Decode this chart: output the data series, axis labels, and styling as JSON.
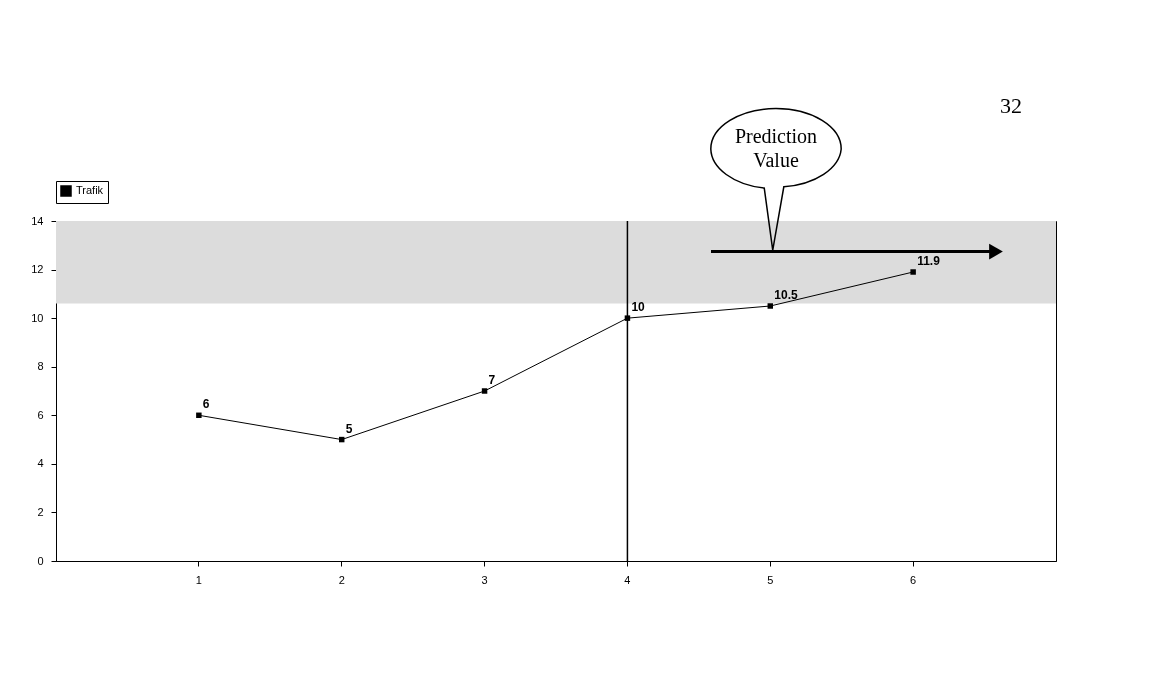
{
  "chart_data": {
    "type": "line",
    "categories": [
      "1",
      "2",
      "3",
      "4",
      "5",
      "6"
    ],
    "series": [
      {
        "name": "Trafik",
        "color": "#000000",
        "values": [
          6,
          5,
          7,
          10,
          10.5,
          11.9
        ]
      }
    ],
    "ylim": [
      0,
      14
    ],
    "yticks": [
      0,
      2,
      4,
      6,
      8,
      10,
      12,
      14
    ],
    "data_labels": true,
    "marker": "square",
    "line_style": "solid",
    "legend": "top",
    "grid": false,
    "ref_lines": [
      {
        "axis": "x",
        "value": "4",
        "color": "#000000"
      }
    ],
    "bands": [
      {
        "axis": "y",
        "from": 10.6,
        "to": 14,
        "color": "#dcdcdc"
      }
    ],
    "annotations": [
      "Prediction Value",
      "32"
    ]
  }
}
